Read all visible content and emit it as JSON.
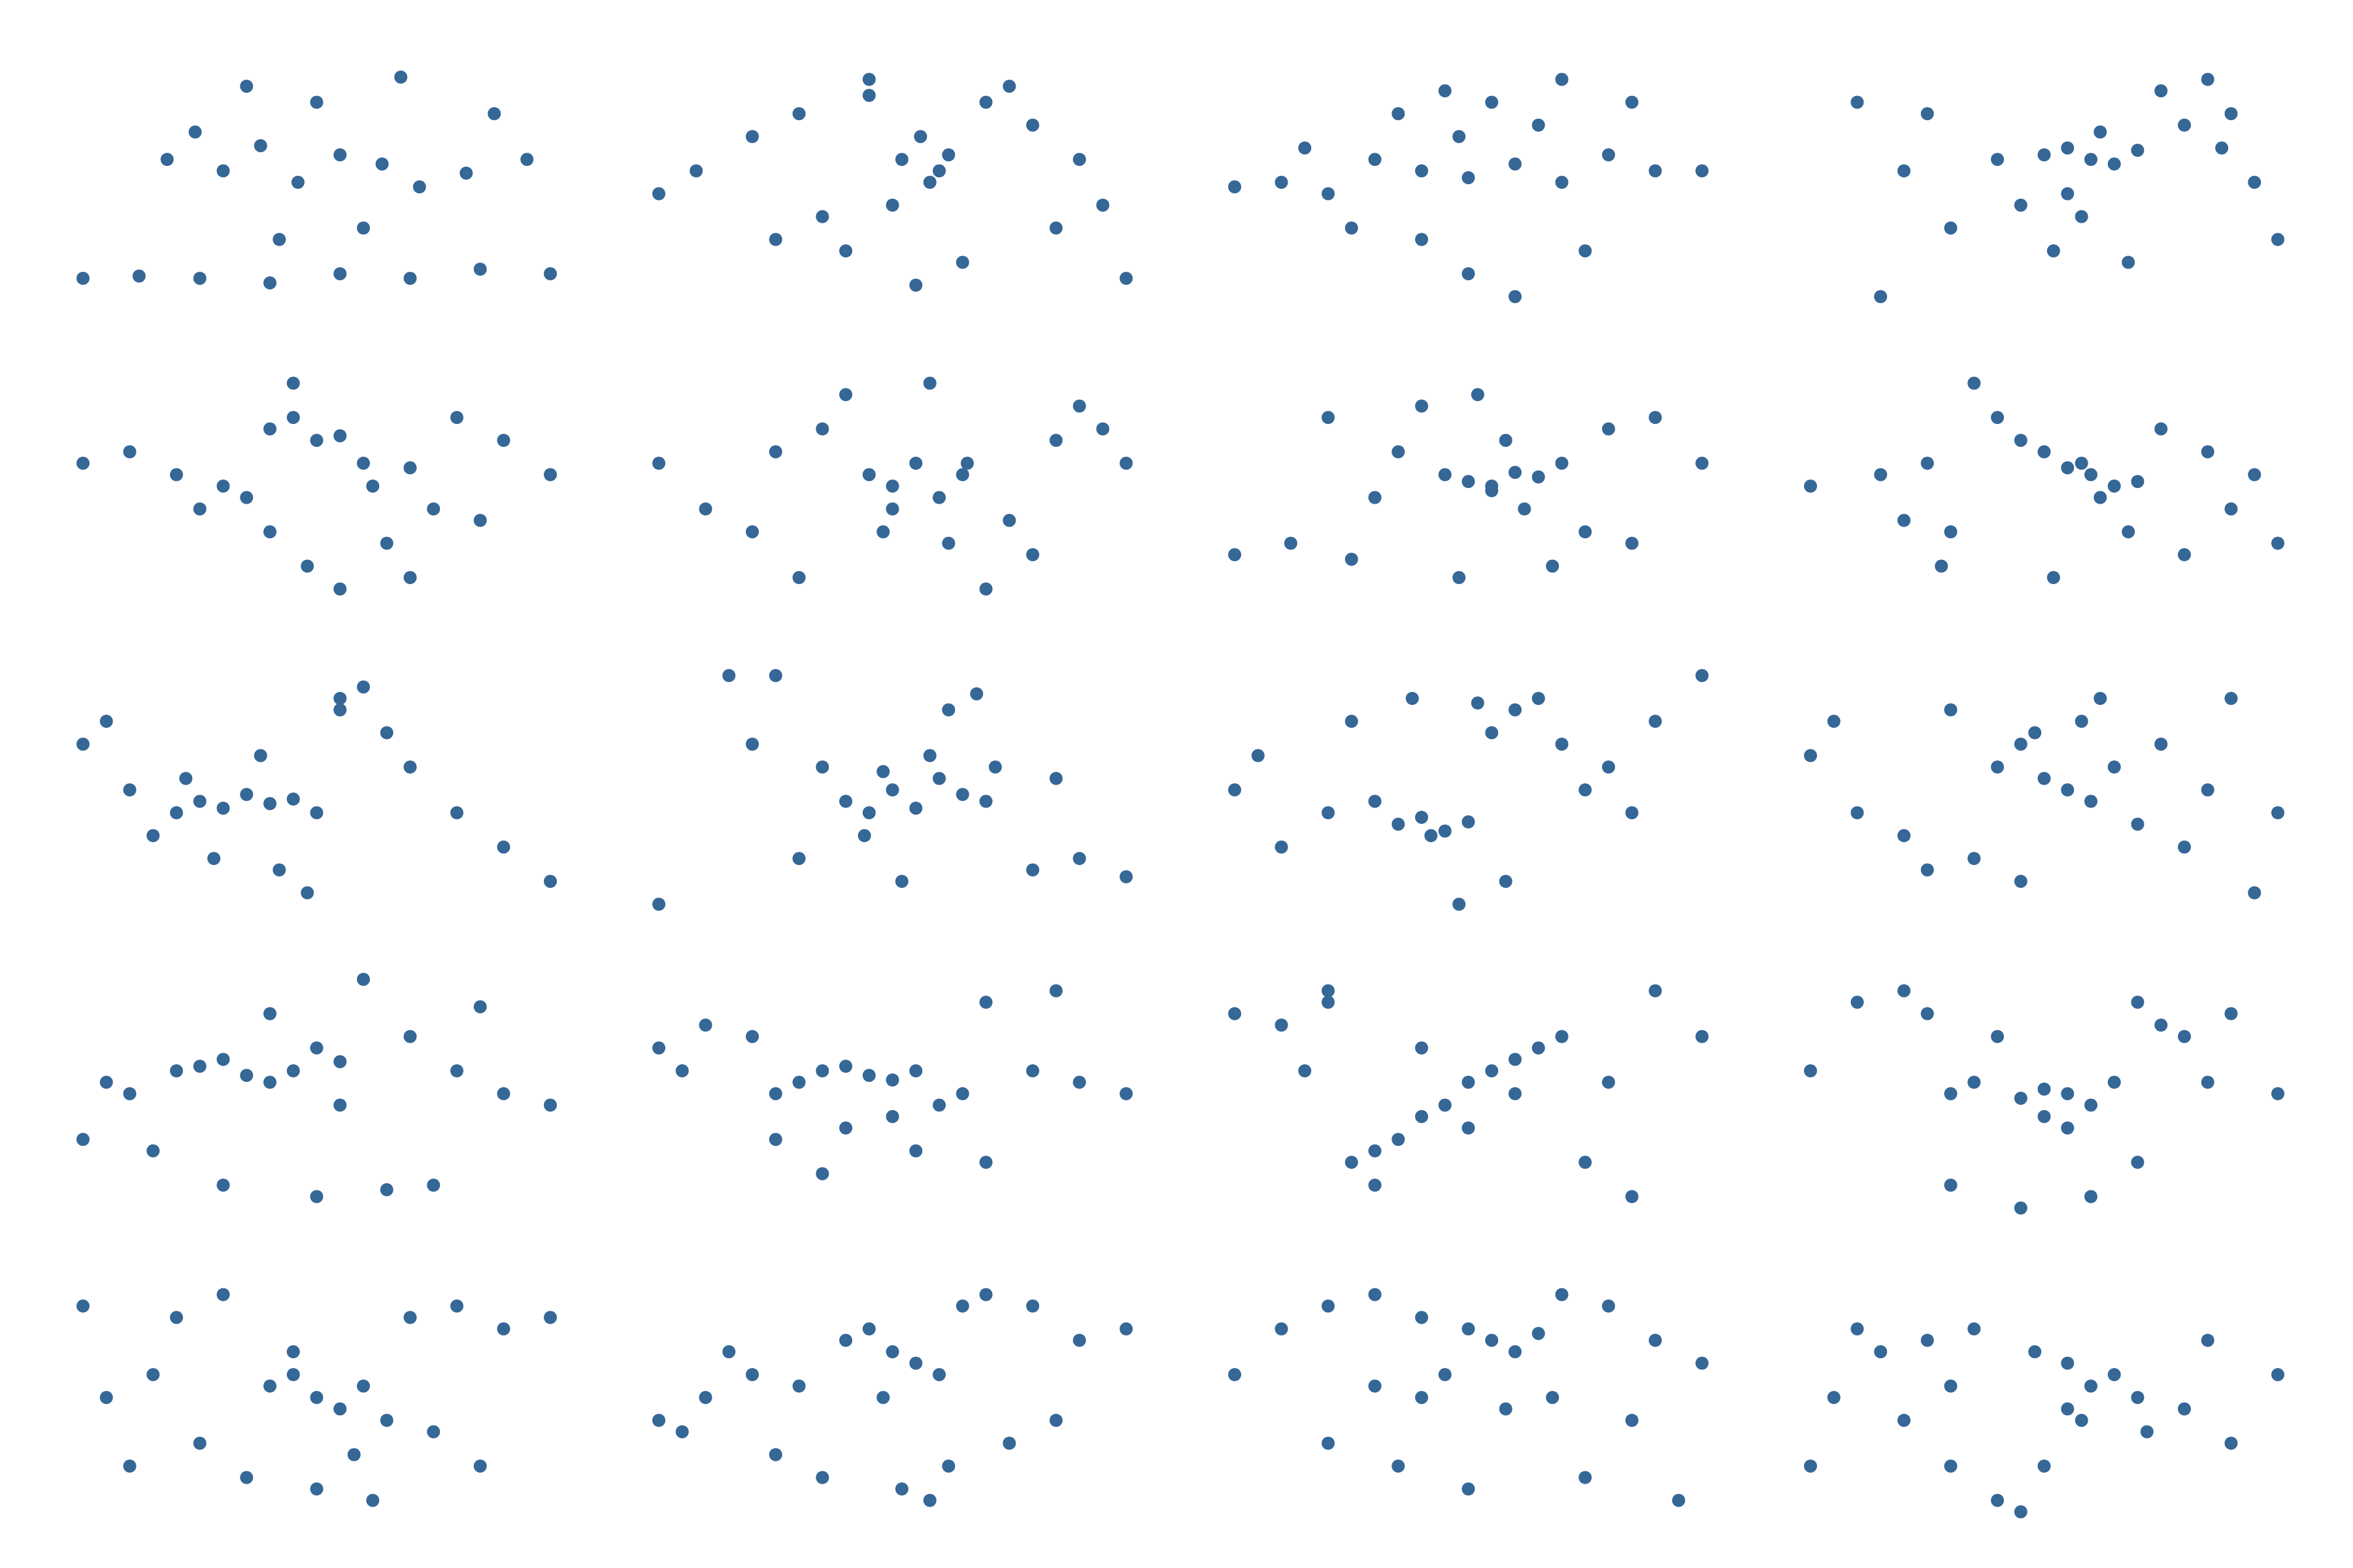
{
  "chart_data": [
    {
      "type": "scatter",
      "color": "#356797",
      "xlim": [
        0,
        100
      ],
      "ylim": [
        0,
        100
      ],
      "x": [
        0,
        12,
        25,
        40,
        55,
        70,
        85,
        100,
        18,
        24,
        30,
        38,
        46,
        55,
        64,
        72,
        82,
        95,
        35,
        50,
        68,
        88,
        60,
        42
      ],
      "y": [
        8,
        9,
        8,
        6,
        10,
        8,
        12,
        10,
        60,
        72,
        55,
        66,
        50,
        62,
        58,
        48,
        54,
        60,
        92,
        85,
        96,
        80,
        30,
        25
      ]
    },
    {
      "type": "scatter",
      "color": "#356797",
      "xlim": [
        0,
        100
      ],
      "ylim": [
        0,
        100
      ],
      "x": [
        0,
        8,
        20,
        30,
        45,
        52,
        58,
        62,
        50,
        56,
        60,
        40,
        70,
        80,
        90,
        100,
        35,
        65,
        85,
        75,
        25,
        55,
        95,
        45
      ],
      "y": [
        45,
        55,
        70,
        80,
        95,
        60,
        50,
        62,
        40,
        70,
        55,
        20,
        85,
        75,
        60,
        8,
        35,
        15,
        30,
        92,
        25,
        5,
        40,
        88
      ]
    },
    {
      "type": "scatter",
      "color": "#356797",
      "xlim": [
        0,
        100
      ],
      "ylim": [
        0,
        100
      ],
      "x": [
        0,
        10,
        20,
        30,
        40,
        50,
        60,
        70,
        80,
        90,
        100,
        35,
        45,
        55,
        65,
        25,
        75,
        50,
        60,
        40,
        85,
        15,
        70,
        48
      ],
      "y": [
        48,
        50,
        45,
        60,
        55,
        52,
        58,
        50,
        62,
        55,
        55,
        80,
        90,
        85,
        75,
        30,
        20,
        10,
        0,
        25,
        85,
        65,
        95,
        70
      ]
    },
    {
      "type": "scatter",
      "color": "#356797",
      "xlim": [
        0,
        100
      ],
      "ylim": [
        0,
        100
      ],
      "x": [
        10,
        25,
        40,
        50,
        55,
        60,
        65,
        70,
        80,
        90,
        100,
        45,
        52,
        58,
        62,
        75,
        85,
        95,
        30,
        20,
        68,
        55,
        88,
        15
      ],
      "y": [
        85,
        80,
        60,
        62,
        65,
        60,
        58,
        64,
        75,
        80,
        25,
        40,
        20,
        35,
        72,
        90,
        95,
        50,
        30,
        55,
        15,
        45,
        65,
        0
      ]
    },
    {
      "type": "scatter",
      "color": "#356797",
      "xlim": [
        0,
        100
      ],
      "ylim": [
        0,
        100
      ],
      "x": [
        0,
        10,
        20,
        30,
        40,
        45,
        50,
        55,
        60,
        70,
        80,
        90,
        100,
        40,
        48,
        65,
        75,
        85,
        35,
        55,
        62,
        25,
        45,
        70
      ],
      "y": [
        60,
        65,
        55,
        50,
        75,
        80,
        70,
        72,
        60,
        58,
        80,
        70,
        55,
        30,
        15,
        25,
        40,
        35,
        45,
        5,
        50,
        40,
        95,
        10
      ]
    },
    {
      "type": "scatter",
      "color": "#356797",
      "xlim": [
        0,
        100
      ],
      "ylim": [
        0,
        100
      ],
      "x": [
        0,
        10,
        20,
        35,
        45,
        50,
        55,
        60,
        65,
        75,
        85,
        95,
        100,
        40,
        58,
        62,
        30,
        70,
        80,
        50,
        25,
        48,
        66,
        90
      ],
      "y": [
        60,
        40,
        30,
        75,
        55,
        50,
        60,
        45,
        55,
        35,
        70,
        75,
        60,
        90,
        95,
        25,
        10,
        5,
        20,
        40,
        65,
        30,
        60,
        85
      ]
    },
    {
      "type": "scatter",
      "color": "#356797",
      "xlim": [
        0,
        100
      ],
      "ylim": [
        0,
        100
      ],
      "x": [
        0,
        12,
        25,
        35,
        45,
        50,
        55,
        60,
        65,
        70,
        80,
        90,
        100,
        40,
        52,
        58,
        62,
        75,
        30,
        48,
        68,
        85,
        20,
        55
      ],
      "y": [
        20,
        25,
        18,
        65,
        55,
        52,
        50,
        56,
        54,
        60,
        75,
        80,
        60,
        85,
        90,
        70,
        40,
        30,
        45,
        10,
        15,
        25,
        80,
        48
      ]
    },
    {
      "type": "scatter",
      "color": "#356797",
      "xlim": [
        0,
        100
      ],
      "ylim": [
        0,
        100
      ],
      "x": [
        0,
        15,
        25,
        35,
        40,
        50,
        55,
        60,
        65,
        70,
        80,
        90,
        100,
        30,
        45,
        58,
        62,
        75,
        85,
        20,
        52,
        68,
        28,
        95
      ],
      "y": [
        50,
        55,
        60,
        95,
        80,
        65,
        58,
        55,
        50,
        52,
        20,
        40,
        25,
        30,
        70,
        60,
        45,
        75,
        65,
        35,
        10,
        30,
        15,
        55
      ]
    },
    {
      "type": "scatter",
      "color": "#356797",
      "xlim": [
        0,
        100
      ],
      "ylim": [
        0,
        100
      ],
      "x": [
        0,
        5,
        10,
        20,
        25,
        30,
        35,
        40,
        45,
        50,
        55,
        60,
        70,
        80,
        90,
        100,
        15,
        28,
        42,
        55,
        65,
        38,
        22,
        48
      ],
      "y": [
        70,
        80,
        50,
        40,
        45,
        42,
        48,
        44,
        46,
        40,
        90,
        95,
        60,
        40,
        25,
        10,
        30,
        20,
        15,
        85,
        75,
        65,
        55,
        5
      ]
    },
    {
      "type": "scatter",
      "color": "#356797",
      "xlim": [
        0,
        100
      ],
      "ylim": [
        0,
        100
      ],
      "x": [
        0,
        15,
        25,
        30,
        40,
        45,
        50,
        55,
        60,
        65,
        70,
        80,
        90,
        100,
        35,
        48,
        58,
        72,
        85,
        62,
        68,
        20,
        52,
        44
      ],
      "y": [
        0,
        100,
        100,
        20,
        45,
        40,
        50,
        42,
        55,
        48,
        45,
        15,
        20,
        12,
        60,
        58,
        65,
        60,
        55,
        85,
        92,
        70,
        10,
        30
      ]
    },
    {
      "type": "scatter",
      "color": "#356797",
      "xlim": [
        0,
        100
      ],
      "ylim": [
        0,
        100
      ],
      "x": [
        0,
        5,
        10,
        20,
        30,
        35,
        40,
        45,
        50,
        55,
        60,
        70,
        80,
        90,
        100,
        25,
        38,
        52,
        65,
        75,
        42,
        85,
        58,
        48
      ],
      "y": [
        50,
        65,
        25,
        40,
        45,
        35,
        38,
        32,
        36,
        75,
        85,
        70,
        60,
        80,
        100,
        80,
        90,
        88,
        90,
        50,
        30,
        40,
        10,
        0
      ]
    },
    {
      "type": "scatter",
      "color": "#356797",
      "xlim": [
        0,
        100
      ],
      "ylim": [
        0,
        100
      ],
      "x": [
        0,
        5,
        10,
        20,
        30,
        40,
        45,
        50,
        55,
        60,
        65,
        70,
        80,
        90,
        100,
        35,
        48,
        58,
        75,
        85,
        25,
        62,
        45,
        95
      ],
      "y": [
        65,
        80,
        40,
        30,
        85,
        60,
        70,
        55,
        50,
        45,
        60,
        35,
        25,
        90,
        40,
        20,
        75,
        80,
        70,
        50,
        15,
        90,
        10,
        5
      ]
    },
    {
      "type": "scatter",
      "color": "#356797",
      "xlim": [
        0,
        100
      ],
      "ylim": [
        0,
        100
      ],
      "x": [
        0,
        5,
        10,
        20,
        25,
        30,
        35,
        40,
        45,
        50,
        55,
        60,
        70,
        80,
        90,
        100,
        30,
        50,
        65,
        75,
        40,
        85,
        15,
        55
      ],
      "y": [
        30,
        55,
        50,
        60,
        62,
        65,
        58,
        55,
        60,
        70,
        64,
        100,
        75,
        60,
        50,
        45,
        10,
        5,
        8,
        10,
        85,
        88,
        25,
        45
      ]
    },
    {
      "type": "scatter",
      "color": "#356797",
      "xlim": [
        0,
        100
      ],
      "ylim": [
        0,
        100
      ],
      "x": [
        0,
        5,
        10,
        20,
        25,
        30,
        35,
        40,
        45,
        50,
        55,
        60,
        65,
        70,
        80,
        90,
        100,
        25,
        40,
        55,
        70,
        85,
        35,
        50
      ],
      "y": [
        70,
        60,
        80,
        75,
        50,
        55,
        60,
        62,
        58,
        56,
        60,
        45,
        50,
        90,
        60,
        55,
        50,
        30,
        35,
        25,
        20,
        95,
        15,
        40
      ]
    },
    {
      "type": "scatter",
      "color": "#356797",
      "xlim": [
        0,
        100
      ],
      "ylim": [
        0,
        100
      ],
      "x": [
        0,
        10,
        20,
        25,
        30,
        35,
        40,
        45,
        50,
        55,
        60,
        65,
        70,
        80,
        90,
        100,
        15,
        30,
        50,
        60,
        75,
        85,
        40,
        20
      ],
      "y": [
        85,
        80,
        95,
        20,
        25,
        30,
        40,
        45,
        55,
        60,
        65,
        70,
        75,
        55,
        95,
        75,
        60,
        10,
        35,
        50,
        20,
        5,
        70,
        90
      ]
    },
    {
      "type": "scatter",
      "color": "#356797",
      "xlim": [
        0,
        100
      ],
      "ylim": [
        0,
        100
      ],
      "x": [
        0,
        10,
        20,
        25,
        30,
        35,
        40,
        45,
        50,
        55,
        60,
        65,
        70,
        75,
        80,
        90,
        100,
        50,
        55,
        60,
        30,
        70,
        45,
        85
      ],
      "y": [
        60,
        90,
        95,
        85,
        50,
        55,
        75,
        48,
        52,
        50,
        45,
        55,
        90,
        80,
        75,
        85,
        50,
        40,
        35,
        5,
        10,
        20,
        0,
        55
      ]
    },
    {
      "type": "scatter",
      "color": "#356797",
      "xlim": [
        0,
        100
      ],
      "ylim": [
        0,
        100
      ],
      "x": [
        0,
        5,
        10,
        20,
        30,
        40,
        45,
        50,
        55,
        60,
        65,
        70,
        80,
        90,
        100,
        25,
        35,
        50,
        58,
        75,
        85,
        15,
        45,
        62
      ],
      "y": [
        90,
        50,
        20,
        85,
        95,
        55,
        60,
        50,
        45,
        55,
        40,
        85,
        90,
        80,
        85,
        30,
        15,
        10,
        25,
        35,
        20,
        60,
        70,
        5
      ]
    },
    {
      "type": "scatter",
      "color": "#356797",
      "xlim": [
        0,
        100
      ],
      "ylim": [
        0,
        100
      ],
      "x": [
        0,
        5,
        10,
        20,
        30,
        40,
        45,
        50,
        55,
        60,
        65,
        70,
        80,
        90,
        100,
        25,
        35,
        52,
        58,
        75,
        85,
        15,
        48,
        62
      ],
      "y": [
        40,
        35,
        50,
        60,
        55,
        75,
        80,
        70,
        65,
        60,
        90,
        95,
        90,
        75,
        80,
        25,
        15,
        10,
        5,
        30,
        40,
        70,
        50,
        20
      ]
    },
    {
      "type": "scatter",
      "color": "#356797",
      "xlim": [
        0,
        100
      ],
      "ylim": [
        0,
        100
      ],
      "x": [
        0,
        10,
        20,
        30,
        40,
        50,
        55,
        60,
        65,
        70,
        80,
        90,
        100,
        30,
        45,
        58,
        68,
        85,
        20,
        35,
        50,
        75,
        40,
        95
      ],
      "y": [
        60,
        80,
        90,
        95,
        85,
        80,
        75,
        70,
        78,
        95,
        90,
        75,
        65,
        55,
        60,
        45,
        50,
        40,
        30,
        20,
        10,
        15,
        50,
        5
      ]
    },
    {
      "type": "scatter",
      "color": "#356797",
      "xlim": [
        0,
        100
      ],
      "ylim": [
        0,
        100
      ],
      "x": [
        0,
        5,
        10,
        15,
        20,
        30,
        40,
        45,
        50,
        55,
        60,
        65,
        70,
        80,
        90,
        100,
        25,
        35,
        48,
        58,
        72,
        85,
        30,
        55
      ],
      "y": [
        20,
        50,
        80,
        70,
        40,
        20,
        5,
        0,
        20,
        65,
        55,
        60,
        50,
        45,
        30,
        60,
        75,
        80,
        70,
        40,
        35,
        75,
        55,
        45
      ]
    }
  ]
}
